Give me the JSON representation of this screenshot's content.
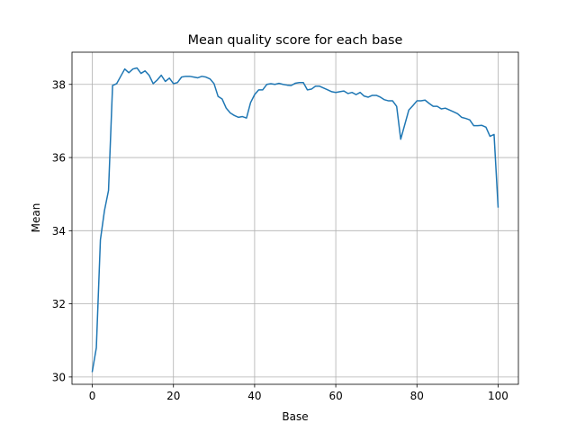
{
  "chart_data": {
    "type": "line",
    "title": "Mean quality score for each base",
    "xlabel": "Base",
    "ylabel": "Mean",
    "xlim": [
      -5,
      105
    ],
    "ylim": [
      29.8,
      38.88
    ],
    "xticks": [
      0,
      20,
      40,
      60,
      80,
      100
    ],
    "yticks": [
      30,
      32,
      34,
      36,
      38
    ],
    "grid": true,
    "colors": {
      "line": "#1f77b4",
      "grid": "#b0b0b0",
      "axes": "#000000"
    },
    "series": [
      {
        "name": "Mean",
        "x": [
          0,
          1,
          2,
          3,
          4,
          5,
          6,
          7,
          8,
          9,
          10,
          11,
          12,
          13,
          14,
          15,
          16,
          17,
          18,
          19,
          20,
          21,
          22,
          23,
          24,
          25,
          26,
          27,
          28,
          29,
          30,
          31,
          32,
          33,
          34,
          35,
          36,
          37,
          38,
          39,
          40,
          41,
          42,
          43,
          44,
          45,
          46,
          47,
          48,
          49,
          50,
          51,
          52,
          53,
          54,
          55,
          56,
          57,
          58,
          59,
          60,
          61,
          62,
          63,
          64,
          65,
          66,
          67,
          68,
          69,
          70,
          71,
          72,
          73,
          74,
          75,
          76,
          77,
          78,
          79,
          80,
          81,
          82,
          83,
          84,
          85,
          86,
          87,
          88,
          89,
          90,
          91,
          92,
          93,
          94,
          95,
          96,
          97,
          98,
          99,
          100
        ],
        "values": [
          30.15,
          30.8,
          33.75,
          34.55,
          35.1,
          37.97,
          38.02,
          38.22,
          38.42,
          38.32,
          38.42,
          38.45,
          38.3,
          38.37,
          38.25,
          38.02,
          38.12,
          38.25,
          38.08,
          38.17,
          38.02,
          38.05,
          38.2,
          38.22,
          38.22,
          38.2,
          38.18,
          38.22,
          38.2,
          38.15,
          38.02,
          37.67,
          37.6,
          37.35,
          37.22,
          37.15,
          37.1,
          37.12,
          37.08,
          37.5,
          37.72,
          37.85,
          37.85,
          38.0,
          38.02,
          38.0,
          38.03,
          38.0,
          37.98,
          37.97,
          38.03,
          38.05,
          38.05,
          37.85,
          37.87,
          37.95,
          37.95,
          37.9,
          37.85,
          37.8,
          37.78,
          37.8,
          37.82,
          37.75,
          37.78,
          37.72,
          37.78,
          37.68,
          37.65,
          37.7,
          37.7,
          37.65,
          37.58,
          37.55,
          37.55,
          37.4,
          36.5,
          36.9,
          37.3,
          37.42,
          37.55,
          37.55,
          37.57,
          37.48,
          37.4,
          37.4,
          37.33,
          37.35,
          37.3,
          37.25,
          37.2,
          37.1,
          37.07,
          37.03,
          36.87,
          36.87,
          36.88,
          36.83,
          36.58,
          36.63,
          34.65
        ]
      }
    ]
  }
}
